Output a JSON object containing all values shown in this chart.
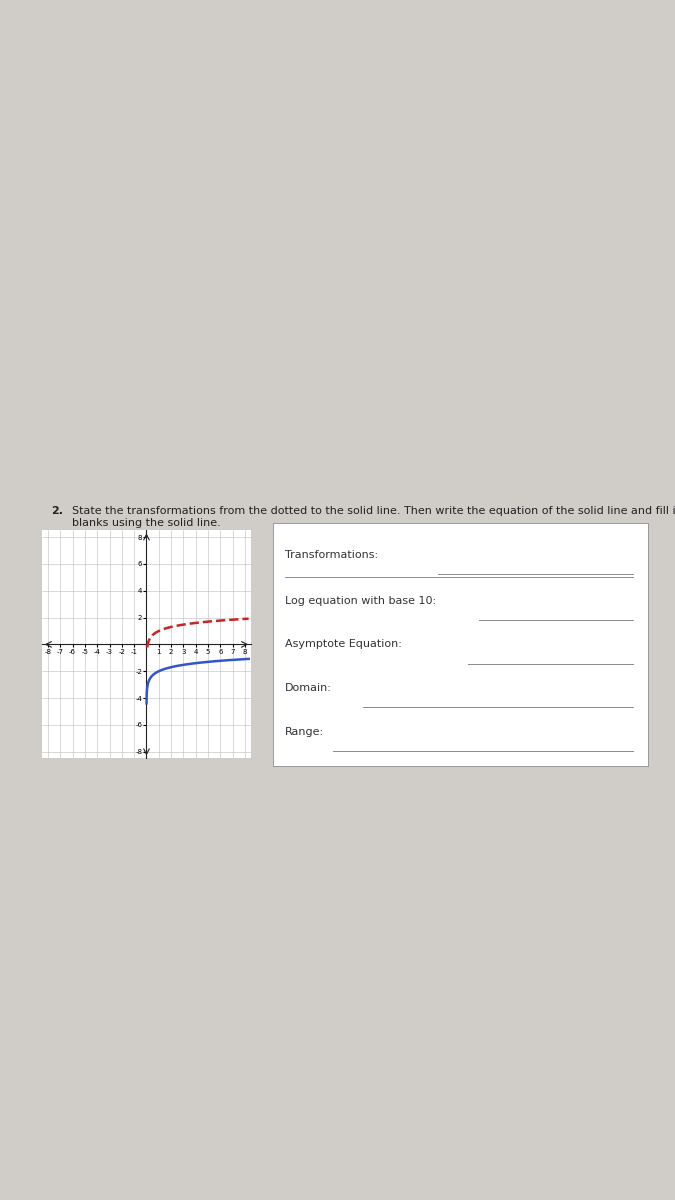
{
  "background_color": "#d0ccc7",
  "white_box_color": "#ffffff",
  "title_number": "2.",
  "title_text": "State the transformations from the dotted to the solid line. Then write the equation of the solid line and fill in tne\nblanks using the solid line.",
  "title_fontsize": 8.0,
  "graph": {
    "xlim": [
      -8.5,
      8.5
    ],
    "ylim": [
      -8.5,
      8.5
    ],
    "xticks": [
      -8,
      -7,
      -6,
      -5,
      -4,
      -3,
      -2,
      -1,
      0,
      1,
      2,
      3,
      4,
      5,
      6,
      7,
      8
    ],
    "yticks": [
      -8,
      -6,
      -4,
      -2,
      0,
      2,
      4,
      6,
      8
    ],
    "tick_fontsize": 5.0,
    "grid_color": "#bbbbbb",
    "grid_linewidth": 0.4,
    "axis_color": "#222222",
    "dotted_color": "#cc2222",
    "solid_color": "#3355cc",
    "dotted_linewidth": 1.8,
    "solid_linewidth": 1.8
  },
  "qa_box": {
    "labels": [
      "Transformations:",
      "Log equation with base 10:",
      "Asymptote Equation:",
      "Domain:",
      "Range:"
    ],
    "label_fontsize": 8.0,
    "line_color": "#777777"
  }
}
